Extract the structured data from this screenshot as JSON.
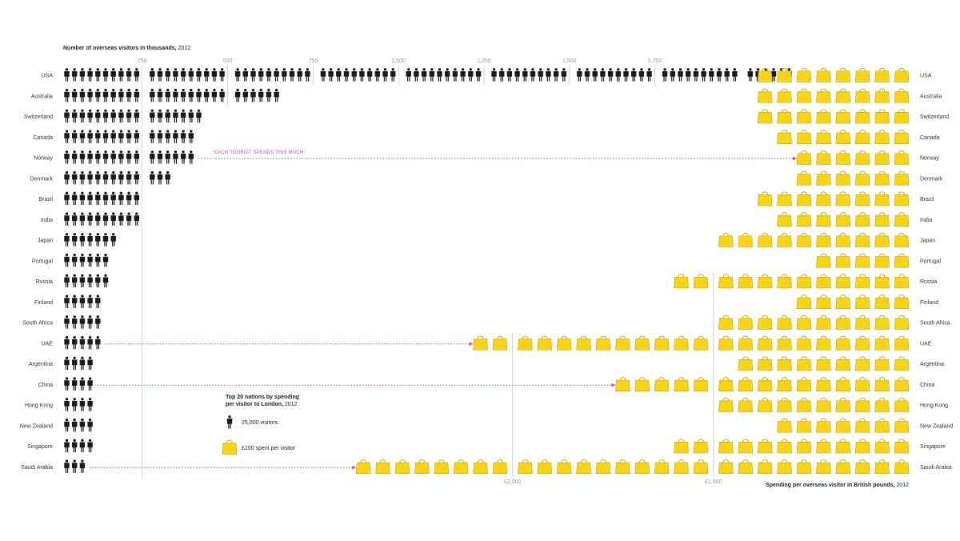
{
  "colors": {
    "person": "#1a1a1a",
    "bag": "#f7d417",
    "bag_stroke": "#c9a800",
    "arrow": "#c04fc0",
    "gridline": "#c8c8c8"
  },
  "chart_data": {
    "type": "pictogram",
    "title_bold": "Number of overseas visitors in thousands,",
    "title_rest": " 2012",
    "visitor_ticks": [
      "250",
      "500",
      "750",
      "1,000",
      "1,250",
      "1,500",
      "1,750"
    ],
    "spend_title_bold": "Spending per overseas visitor in British pounds,",
    "spend_title_rest": " 2012",
    "spend_ticks": [
      "£1,000",
      "£2,000"
    ],
    "annotation": "EACH TOURIST SPENDS THIS MUCH",
    "legend": {
      "title_bold": "Top 20 nations by spending per visitor to London,",
      "title_rest": " 2012",
      "person_label": "25,000 visitors",
      "bag_label": "£100 spent per visitor"
    },
    "units": {
      "person": 25000,
      "bag": 100
    },
    "countries": [
      {
        "name": "USA",
        "visitors_thousands": 2150,
        "spend_gbp": 800
      },
      {
        "name": "Australia",
        "visitors_thousands": 650,
        "spend_gbp": 800
      },
      {
        "name": "Switzerland",
        "visitors_thousands": 425,
        "spend_gbp": 800
      },
      {
        "name": "Canada",
        "visitors_thousands": 400,
        "spend_gbp": 700
      },
      {
        "name": "Norway",
        "visitors_thousands": 400,
        "spend_gbp": 600
      },
      {
        "name": "Denmark",
        "visitors_thousands": 325,
        "spend_gbp": 600
      },
      {
        "name": "Brazil",
        "visitors_thousands": 250,
        "spend_gbp": 800
      },
      {
        "name": "India",
        "visitors_thousands": 250,
        "spend_gbp": 700
      },
      {
        "name": "Japan",
        "visitors_thousands": 175,
        "spend_gbp": 1000
      },
      {
        "name": "Portugal",
        "visitors_thousands": 150,
        "spend_gbp": 500
      },
      {
        "name": "Russia",
        "visitors_thousands": 150,
        "spend_gbp": 1200
      },
      {
        "name": "Finland",
        "visitors_thousands": 125,
        "spend_gbp": 600
      },
      {
        "name": "South Africa",
        "visitors_thousands": 125,
        "spend_gbp": 1000
      },
      {
        "name": "UAE",
        "visitors_thousands": 125,
        "spend_gbp": 2200
      },
      {
        "name": "Argentina",
        "visitors_thousands": 100,
        "spend_gbp": 900
      },
      {
        "name": "China",
        "visitors_thousands": 100,
        "spend_gbp": 1500
      },
      {
        "name": "Hong Kong",
        "visitors_thousands": 100,
        "spend_gbp": 1000
      },
      {
        "name": "New Zealand",
        "visitors_thousands": 100,
        "spend_gbp": 700
      },
      {
        "name": "Singapore",
        "visitors_thousands": 100,
        "spend_gbp": 1200
      },
      {
        "name": "Saudi Arabia",
        "visitors_thousands": 75,
        "spend_gbp": 2800
      }
    ]
  }
}
